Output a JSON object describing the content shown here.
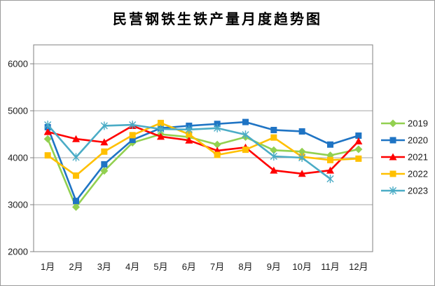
{
  "title": "民营钢铁生铁产量月度趋势图",
  "colors": {
    "gridline": "#a6a6a6",
    "axis": "#808080",
    "text": "#1a1a1a",
    "background": "#ffffff"
  },
  "chart_data": {
    "type": "line",
    "title": "民营钢铁生铁产量月度趋势图",
    "xlabel": "",
    "ylabel": "",
    "categories": [
      "1月",
      "2月",
      "3月",
      "4月",
      "5月",
      "6月",
      "7月",
      "8月",
      "9月",
      "10月",
      "11月",
      "12月"
    ],
    "y_ticks": [
      2000,
      3000,
      4000,
      5000,
      6000
    ],
    "ylim": [
      2000,
      6000
    ],
    "grid": true,
    "legend_position": "right",
    "series": [
      {
        "name": "2019",
        "color": "#92D050",
        "marker": "diamond",
        "values": [
          4400,
          2950,
          3720,
          4320,
          4500,
          4440,
          4280,
          4440,
          4160,
          4130,
          4050,
          4180
        ]
      },
      {
        "name": "2020",
        "color": "#1F74C4",
        "marker": "square",
        "values": [
          4650,
          3080,
          3860,
          4380,
          4630,
          4680,
          4720,
          4760,
          4590,
          4560,
          4280,
          4470
        ]
      },
      {
        "name": "2021",
        "color": "#FF0000",
        "marker": "triangle",
        "values": [
          4550,
          4400,
          4330,
          4680,
          4450,
          4370,
          4150,
          4220,
          3730,
          3660,
          3730,
          4350
        ]
      },
      {
        "name": "2022",
        "color": "#FFC000",
        "marker": "square",
        "values": [
          4050,
          3620,
          4130,
          4480,
          4740,
          4500,
          4060,
          4170,
          4430,
          4020,
          3950,
          3980
        ]
      },
      {
        "name": "2023",
        "color": "#4BACC6",
        "marker": "star",
        "values": [
          4700,
          4010,
          4680,
          4700,
          4610,
          4600,
          4630,
          4490,
          4030,
          4000,
          3550,
          null
        ]
      }
    ]
  }
}
